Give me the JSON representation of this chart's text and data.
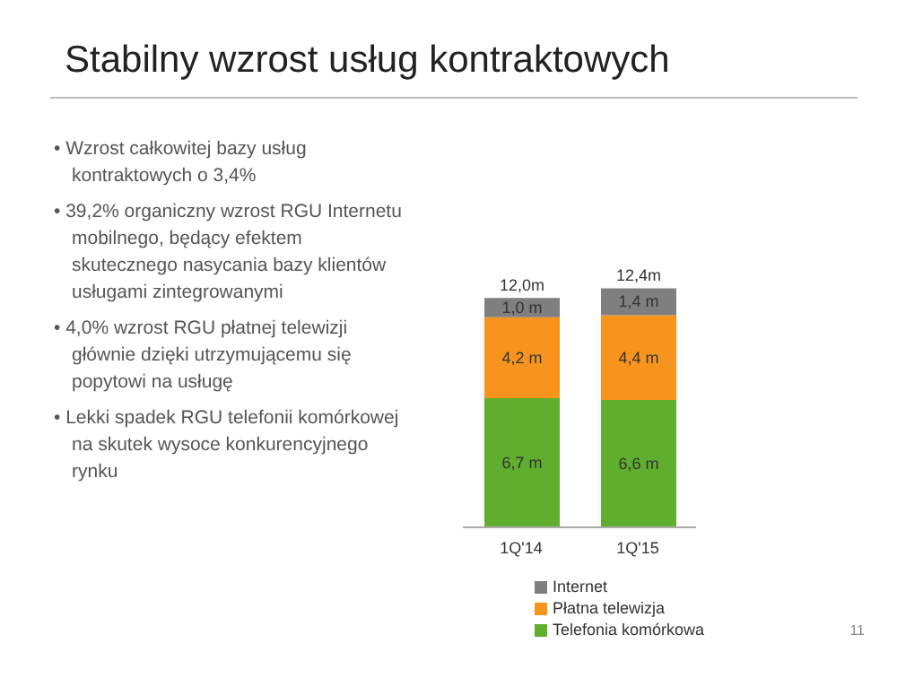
{
  "chart_data": {
    "type": "bar",
    "title": "Stabilny wzrost usług kontraktowych",
    "categories": [
      "1Q'14",
      "1Q'15"
    ],
    "stacked": true,
    "data_labels": false,
    "legend": "bottom",
    "totals": [
      "12,0m",
      "12,4m"
    ],
    "series": [
      {
        "name": "Telefonia komórkowa",
        "color": "#5fae2e",
        "values": [
          6.7,
          6.6
        ],
        "value_labels": [
          "6,7 m",
          "6,6 m"
        ]
      },
      {
        "name": "Płatna telewizja",
        "color": "#f7941d",
        "values": [
          4.2,
          4.4
        ],
        "value_labels": [
          "4,2 m",
          "4,4 m"
        ]
      },
      {
        "name": "Internet",
        "color": "#7f7f7f",
        "values": [
          1.0,
          1.4
        ],
        "value_labels": [
          "1,0 m",
          "1,4 m"
        ]
      }
    ],
    "annotations": [
      "• Wzrost całkowitej bazy usług kontraktowych o 3,4%",
      "• 39,2% organiczny wzrost RGU Internetu mobilnego, będący efektem skutecznego nasycania bazy klientów usługami zintegrowanymi",
      "• 4,0% wzrost RGU płatnej telewizji głównie dzięki utrzymującemu się popytowi na usługę",
      "• Lekki spadek RGU telefonii komórkowej na skutek wysoce konkurencyjnego rynku",
      "11"
    ]
  }
}
